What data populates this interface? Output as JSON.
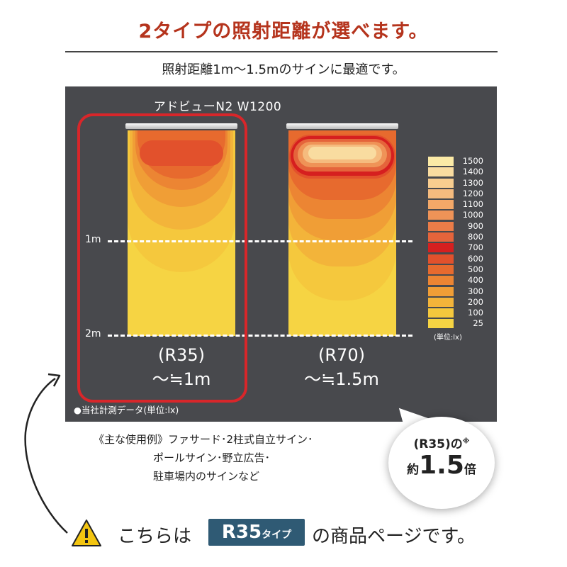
{
  "header": {
    "title": "2タイプの照射距離が選べます。",
    "subtitle": "照射距離1m〜1.5mのサインに最適です。"
  },
  "panel": {
    "model": "アドビューN2 W1200",
    "distance_1": "1m",
    "distance_2": "2m",
    "r35_label": "(R35)",
    "r35_range": "〜≒1m",
    "r70_label": "(R70)",
    "r70_range": "〜≒1.5m",
    "note": "●当社計測データ(単位:lx)",
    "unit": "(単位:lx)",
    "highlight_color": "#d8262a"
  },
  "legend": [
    {
      "value": "1500",
      "color": "#fbeaa6"
    },
    {
      "value": "1400",
      "color": "#f9dca0"
    },
    {
      "value": "1300",
      "color": "#f8cd8f"
    },
    {
      "value": "1200",
      "color": "#f5bb7e"
    },
    {
      "value": "1100",
      "color": "#f3a868"
    },
    {
      "value": "1000",
      "color": "#ef9357"
    },
    {
      "value": "900",
      "color": "#eb7c48"
    },
    {
      "value": "800",
      "color": "#e5643b"
    },
    {
      "value": "700",
      "color": "#d61f1f"
    },
    {
      "value": "600",
      "color": "#e2512c"
    },
    {
      "value": "500",
      "color": "#e76a2e"
    },
    {
      "value": "400",
      "color": "#ec8533"
    },
    {
      "value": "300",
      "color": "#f09e36"
    },
    {
      "value": "200",
      "color": "#f3b43a"
    },
    {
      "value": "100",
      "color": "#f5c83d"
    },
    {
      "value": "25",
      "color": "#f6d443"
    }
  ],
  "usage": {
    "line1": "《主な使用例》ファサード･2柱式自立サイン･",
    "line2": "ポールサイン･野立広告･",
    "line3": "駐車場内のサインなど"
  },
  "bubble": {
    "line1": "(R35)の",
    "mark": "※",
    "prefix": "約",
    "value": "1.5",
    "suffix": "倍"
  },
  "footer": {
    "text_before": "こちらは",
    "badge_main": "R35",
    "badge_sub": "タイプ",
    "text_after": "の商品ページです。",
    "warning_icon": "warning-icon"
  }
}
